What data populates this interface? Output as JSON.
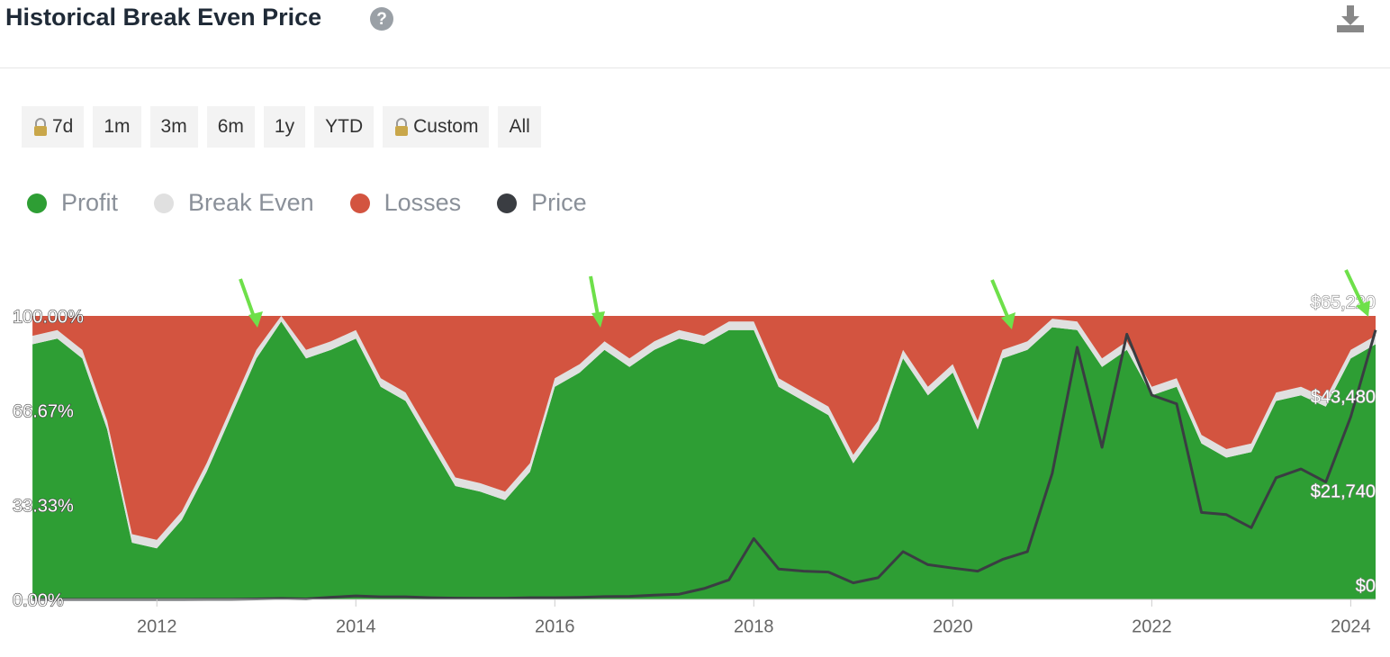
{
  "header": {
    "title": "Historical Break Even Price"
  },
  "buttons": [
    "7d",
    "1m",
    "3m",
    "6m",
    "1y",
    "YTD",
    "Custom",
    "All"
  ],
  "chart_data": {
    "type": "area",
    "x": [
      2010.75,
      2011,
      2011.25,
      2011.5,
      2011.75,
      2012,
      2012.25,
      2012.5,
      2012.75,
      2013,
      2013.25,
      2013.5,
      2013.75,
      2014,
      2014.25,
      2014.5,
      2014.75,
      2015,
      2015.25,
      2015.5,
      2015.75,
      2016,
      2016.25,
      2016.5,
      2016.75,
      2017,
      2017.25,
      2017.5,
      2017.75,
      2018,
      2018.25,
      2018.5,
      2018.75,
      2019,
      2019.25,
      2019.5,
      2019.75,
      2020,
      2020.25,
      2020.5,
      2020.75,
      2021,
      2021.25,
      2021.5,
      2021.75,
      2022,
      2022.25,
      2022.5,
      2022.75,
      2023,
      2023.25,
      2023.5,
      2023.75,
      2024,
      2024.25
    ],
    "series": [
      {
        "name": "Profit",
        "color": "#2e9e34",
        "values": [
          90,
          92,
          85,
          60,
          20,
          18,
          28,
          45,
          65,
          85,
          98,
          85,
          88,
          92,
          75,
          70,
          55,
          40,
          38,
          35,
          45,
          75,
          80,
          88,
          82,
          88,
          92,
          90,
          95,
          95,
          75,
          70,
          65,
          48,
          60,
          85,
          72,
          80,
          60,
          85,
          88,
          96,
          95,
          82,
          88,
          72,
          75,
          55,
          50,
          52,
          70,
          72,
          68,
          85,
          90
        ]
      },
      {
        "name": "Break Even",
        "color": "#e0e0e0",
        "values": [
          3,
          3,
          3,
          3,
          3,
          3,
          3,
          3,
          3,
          3,
          2,
          3,
          3,
          3,
          3,
          3,
          3,
          3,
          3,
          3,
          3,
          3,
          3,
          3,
          3,
          3,
          3,
          3,
          3,
          3,
          3,
          3,
          3,
          3,
          3,
          3,
          3,
          3,
          3,
          3,
          3,
          3,
          3,
          3,
          3,
          3,
          3,
          3,
          3,
          3,
          3,
          3,
          3,
          3,
          3
        ]
      },
      {
        "name": "Losses",
        "color": "#d35440",
        "values": [
          7,
          5,
          12,
          37,
          77,
          79,
          69,
          52,
          32,
          12,
          0,
          12,
          9,
          5,
          22,
          27,
          42,
          57,
          59,
          62,
          52,
          22,
          17,
          9,
          15,
          9,
          5,
          7,
          2,
          2,
          22,
          27,
          32,
          49,
          37,
          12,
          25,
          17,
          37,
          12,
          9,
          1,
          2,
          15,
          9,
          25,
          22,
          42,
          47,
          45,
          27,
          25,
          29,
          12,
          7
        ]
      },
      {
        "name": "Price",
        "color": "#3a3d42",
        "axis": "y2",
        "values": [
          0,
          0,
          0,
          0,
          3,
          5,
          10,
          13,
          13,
          100,
          200,
          100,
          500,
          800,
          600,
          600,
          400,
          300,
          250,
          250,
          400,
          400,
          450,
          650,
          700,
          1000,
          1200,
          2500,
          4500,
          14000,
          7000,
          6500,
          6300,
          3800,
          5000,
          11000,
          8000,
          7200,
          6500,
          9200,
          11000,
          29000,
          58000,
          35000,
          61000,
          47000,
          45000,
          20000,
          19500,
          16500,
          28000,
          30000,
          27000,
          42000,
          62000
        ]
      }
    ],
    "xlim": [
      2010.55,
      2024.25
    ],
    "xticks": [
      2012,
      2014,
      2016,
      2018,
      2020,
      2022,
      2024
    ],
    "ylim": [
      0,
      100
    ],
    "yticks": [
      {
        "value": 0,
        "label": "0.00%"
      },
      {
        "value": 33.33,
        "label": "33.33%"
      },
      {
        "value": 66.67,
        "label": "66.67%"
      },
      {
        "value": 100,
        "label": "100.00%"
      }
    ],
    "y2lim": [
      0,
      65220
    ],
    "y2ticks": [
      {
        "value": 0,
        "label": "$0"
      },
      {
        "value": 21740,
        "label": "$21,740"
      },
      {
        "value": 43480,
        "label": "$43,480"
      },
      {
        "value": 65220,
        "label": "$65,220"
      }
    ]
  }
}
